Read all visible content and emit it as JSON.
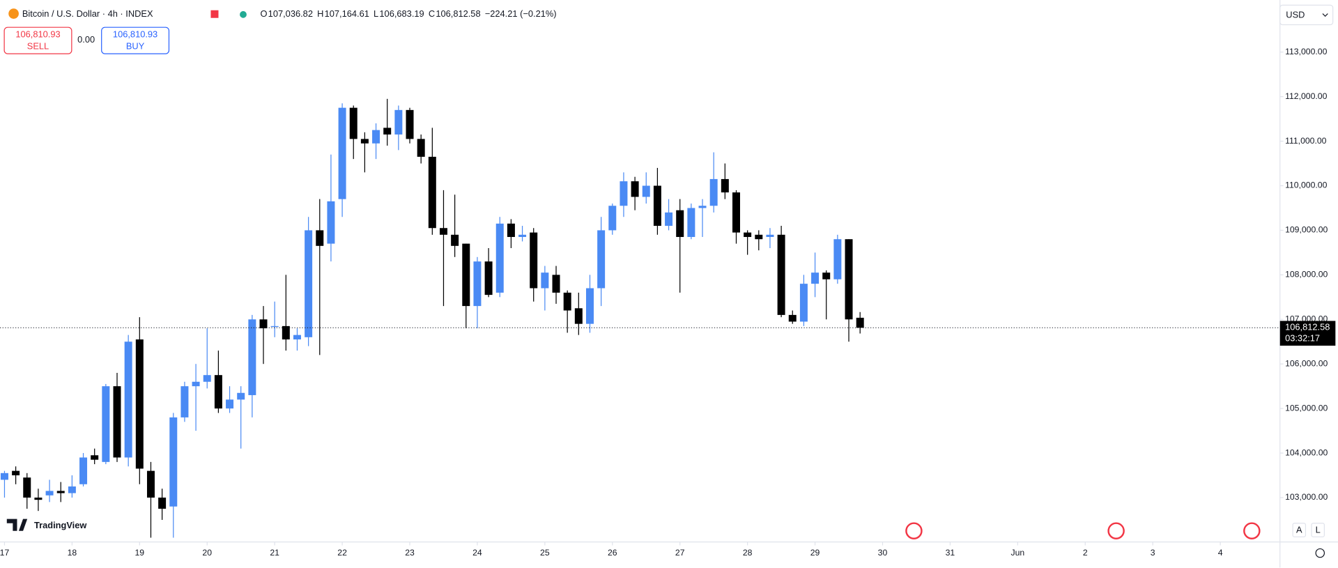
{
  "chart_data": {
    "type": "candlestick",
    "colors": {
      "up": "#4a8af4",
      "down": "#000000"
    },
    "x": [
      0,
      1,
      2,
      3,
      4,
      5,
      6,
      7,
      8,
      9,
      10,
      11,
      12,
      13,
      14,
      15,
      16,
      17,
      18,
      19,
      20,
      21,
      22,
      23,
      24,
      25,
      26,
      27,
      28,
      29,
      30,
      31,
      32,
      33,
      34,
      35,
      36,
      37,
      38,
      39,
      40,
      41,
      42,
      43,
      44,
      45,
      46,
      47,
      48,
      49,
      50,
      51,
      52,
      53,
      54,
      55,
      56,
      57,
      58,
      59,
      60,
      61,
      62,
      63,
      64,
      65,
      66,
      67,
      68,
      69,
      70,
      71,
      72,
      73,
      74,
      75,
      76
    ],
    "open": [
      103400,
      103600,
      103450,
      103000,
      103050,
      103150,
      103100,
      103300,
      103950,
      103800,
      105500,
      103900,
      106550,
      103600,
      103000,
      102800,
      104800,
      105500,
      105600,
      105750,
      105000,
      105200,
      105300,
      107000,
      106850,
      106850,
      106550,
      106600,
      109000,
      108700,
      109700,
      111750,
      111050,
      110950,
      111300,
      111150,
      111700,
      111050,
      110650,
      109050,
      108900,
      108700,
      107300,
      108300,
      107600,
      109150,
      108850,
      108950,
      107700,
      108000,
      107600,
      107250,
      106900,
      107700,
      109000,
      109550,
      110100,
      109750,
      110000,
      109100,
      109450,
      108850,
      109500,
      109550,
      110150,
      109850,
      108950,
      108900,
      108850,
      108900,
      107100,
      106950,
      107800,
      108050,
      107900,
      108800,
      107036.82
    ],
    "high": [
      103600,
      103700,
      103550,
      103200,
      103400,
      103350,
      103500,
      104000,
      104100,
      105550,
      105800,
      106650,
      107050,
      103800,
      103200,
      104900,
      105600,
      106000,
      106800,
      106300,
      105500,
      105500,
      107100,
      107300,
      107400,
      108000,
      106800,
      109300,
      109700,
      110700,
      111850,
      111800,
      111200,
      111400,
      111950,
      111800,
      111750,
      111150,
      111300,
      109900,
      109800,
      108700,
      108400,
      108600,
      109300,
      109250,
      109100,
      109050,
      108200,
      108200,
      107650,
      107600,
      108000,
      109300,
      109600,
      110300,
      110200,
      110300,
      110400,
      109700,
      109700,
      109600,
      109700,
      110750,
      110500,
      109900,
      109000,
      109000,
      109050,
      109100,
      107200,
      108000,
      108500,
      108100,
      108900,
      108800,
      107164.61
    ],
    "low": [
      103000,
      103300,
      102750,
      102700,
      102900,
      102900,
      103000,
      103250,
      103750,
      103750,
      103800,
      103700,
      103300,
      102100,
      102500,
      102100,
      104700,
      104500,
      105450,
      104900,
      104900,
      104100,
      104800,
      106000,
      106600,
      106300,
      106300,
      106400,
      106200,
      108300,
      109300,
      110600,
      110300,
      110600,
      110900,
      110800,
      110950,
      110500,
      108900,
      107300,
      108400,
      106800,
      106800,
      107500,
      107500,
      108600,
      108750,
      107400,
      107200,
      107350,
      106700,
      106650,
      106700,
      107300,
      108900,
      109300,
      109450,
      109600,
      108900,
      109000,
      107600,
      108800,
      108850,
      109400,
      109700,
      108700,
      108450,
      108550,
      108600,
      107050,
      106900,
      106850,
      107500,
      107000,
      107800,
      106500,
      106683.19
    ],
    "close": [
      103550,
      103500,
      103000,
      102950,
      103150,
      103100,
      103250,
      103900,
      103850,
      105500,
      103900,
      106500,
      103650,
      103000,
      102750,
      104800,
      105500,
      105600,
      105750,
      105000,
      105200,
      105350,
      107000,
      106800,
      106850,
      106550,
      106650,
      109000,
      108650,
      109650,
      111750,
      111050,
      110950,
      111250,
      111150,
      111700,
      111050,
      110650,
      109050,
      108900,
      108650,
      107300,
      108300,
      107550,
      109150,
      108850,
      108900,
      107700,
      108050,
      107600,
      107200,
      106900,
      107700,
      109000,
      109550,
      110100,
      109750,
      110000,
      109100,
      109400,
      108850,
      109500,
      109550,
      110150,
      109850,
      108950,
      108850,
      108800,
      108900,
      107100,
      106950,
      107800,
      108050,
      107900,
      108800,
      107000,
      106812.58
    ],
    "xlim": [
      -0.4,
      113.3
    ],
    "xticks": [
      {
        "value": 0,
        "label": "17"
      },
      {
        "value": 6,
        "label": "18"
      },
      {
        "value": 12,
        "label": "19"
      },
      {
        "value": 18,
        "label": "20"
      },
      {
        "value": 24,
        "label": "21"
      },
      {
        "value": 30,
        "label": "22"
      },
      {
        "value": 36,
        "label": "23"
      },
      {
        "value": 42,
        "label": "24"
      },
      {
        "value": 48,
        "label": "25"
      },
      {
        "value": 54,
        "label": "26"
      },
      {
        "value": 60,
        "label": "27"
      },
      {
        "value": 66,
        "label": "28"
      },
      {
        "value": 72,
        "label": "29"
      },
      {
        "value": 78,
        "label": "30"
      },
      {
        "value": 84,
        "label": "31"
      },
      {
        "value": 90,
        "label": "Jun"
      },
      {
        "value": 96,
        "label": "2"
      },
      {
        "value": 102,
        "label": "3"
      },
      {
        "value": 108,
        "label": "4"
      }
    ],
    "ylim": [
      102004,
      114169
    ],
    "yticks": [
      {
        "value": 103000,
        "label": "103,000.00"
      },
      {
        "value": 104000,
        "label": "104,000.00"
      },
      {
        "value": 105000,
        "label": "105,000.00"
      },
      {
        "value": 106000,
        "label": "106,000.00"
      },
      {
        "value": 107000,
        "label": "107,000.00"
      },
      {
        "value": 108000,
        "label": "108,000.00"
      },
      {
        "value": 109000,
        "label": "109,000.00"
      },
      {
        "value": 110000,
        "label": "110,000.00"
      },
      {
        "value": 111000,
        "label": "111,000.00"
      },
      {
        "value": 112000,
        "label": "112,000.00"
      },
      {
        "value": 113000,
        "label": "113,000.00"
      }
    ],
    "last_price_label": "106,812.58",
    "countdown": "03:32:17"
  },
  "ui": {
    "symbol": "Bitcoin / U.S. Dollar · 4h · INDEX",
    "ohlc": [
      {
        "label": "O",
        "value": "107,036.82"
      },
      {
        "label": "H",
        "value": "107,164.61"
      },
      {
        "label": "L",
        "value": "106,683.19"
      },
      {
        "label": "C",
        "value": "106,812.58"
      }
    ],
    "change": "−224.21 (−0.21%)",
    "sell": {
      "price": "106,810.93",
      "label": "SELL"
    },
    "spread": "0.00",
    "buy": {
      "price": "106,810.93",
      "label": "BUY"
    },
    "currency": "USD",
    "logo": "TradingView",
    "buttons": [
      "A",
      "L"
    ]
  }
}
